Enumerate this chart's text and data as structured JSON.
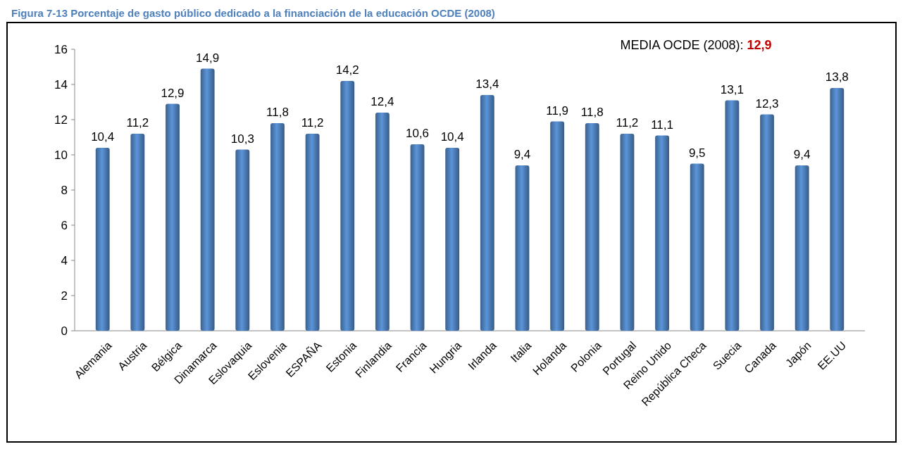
{
  "chart_data": {
    "type": "bar",
    "title": "Figura 7-13 Porcentaje de gasto público dedicado a la financiación de la educación OCDE (2008)",
    "categories": [
      "Alemania",
      "Austria",
      "Bélgica",
      "Dinamarca",
      "Eslovaquia",
      "Eslovenia",
      "ESPAÑA",
      "Estonia",
      "Finlandia",
      "Francia",
      "Hungria",
      "Irlanda",
      "Italia",
      "Holanda",
      "Polonia",
      "Portugal",
      "Reino Unido",
      "República Checa",
      "Suecia",
      "Canada",
      "Japón",
      "EE.UU"
    ],
    "values": [
      10.4,
      11.2,
      12.9,
      14.9,
      10.3,
      11.8,
      11.2,
      14.2,
      12.4,
      10.6,
      10.4,
      13.4,
      9.4,
      11.9,
      11.8,
      11.2,
      11.1,
      9.5,
      13.1,
      12.3,
      9.4,
      13.8
    ],
    "value_labels": [
      "10,4",
      "11,2",
      "12,9",
      "14,9",
      "10,3",
      "11,8",
      "11,2",
      "14,2",
      "12,4",
      "10,6",
      "10,4",
      "13,4",
      "9,4",
      "11,9",
      "11,8",
      "11,2",
      "11,1",
      "9,5",
      "13,1",
      "12,3",
      "9,4",
      "13,8"
    ],
    "color": "#4f81bd",
    "ylim": [
      0,
      16
    ],
    "yticks": [
      0,
      2,
      4,
      6,
      8,
      10,
      12,
      14,
      16
    ],
    "annotations": [
      "MEDIA OCDE (2008): 12,9"
    ]
  }
}
